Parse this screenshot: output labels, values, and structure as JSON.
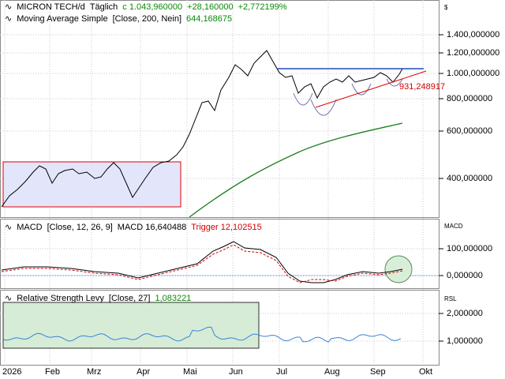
{
  "panel_price": {
    "symbol": "MICRON TECH/d",
    "period": "Täglich",
    "close_label": "c 1.043,960000",
    "change_abs": "+28,160000",
    "change_pct": "+2,772199%",
    "ma_label": "Moving Average Simple",
    "ma_params": "[Close, 200, Nein]",
    "ma_value": "644,168675",
    "currency": "$",
    "y_ticks": [
      "1.400,000000",
      "1.200,000000",
      "1.000,000000",
      "800,000000",
      "600,000000",
      "400,000000"
    ],
    "trendline_label": "931,248917",
    "colors": {
      "box_fill": "#e3e5fb",
      "box_border": "#e00000",
      "ma_line": "#1e7f1e",
      "resistance": "#1f4fb8",
      "trendline": "#e00000"
    }
  },
  "panel_macd": {
    "label": "MACD",
    "params": "[Close, 12, 26, 9]",
    "value_label": "MACD 16,640488",
    "trigger_label": "Trigger 12,102515",
    "side": "MACD",
    "y_ticks": [
      "100,000000",
      "0,000000"
    ],
    "colors": {
      "macd": "#000000",
      "trigger": "#d40000",
      "zero": "#3a6fd8",
      "circle": "#cfe9cf"
    }
  },
  "panel_rsl": {
    "label": "Relative Strength Levy",
    "params": "[Close, 27]",
    "value": "1,083221",
    "side": "RSL",
    "y_ticks": [
      "2,000000",
      "1,000000"
    ],
    "colors": {
      "line": "#3a84d8",
      "box_fill": "#cfe8cf"
    }
  },
  "x_axis": {
    "labels": [
      "2026",
      "Feb",
      "Mrz",
      "Apr",
      "Mai",
      "Jun",
      "Jul",
      "Aug",
      "Sep",
      "Okt"
    ]
  }
}
